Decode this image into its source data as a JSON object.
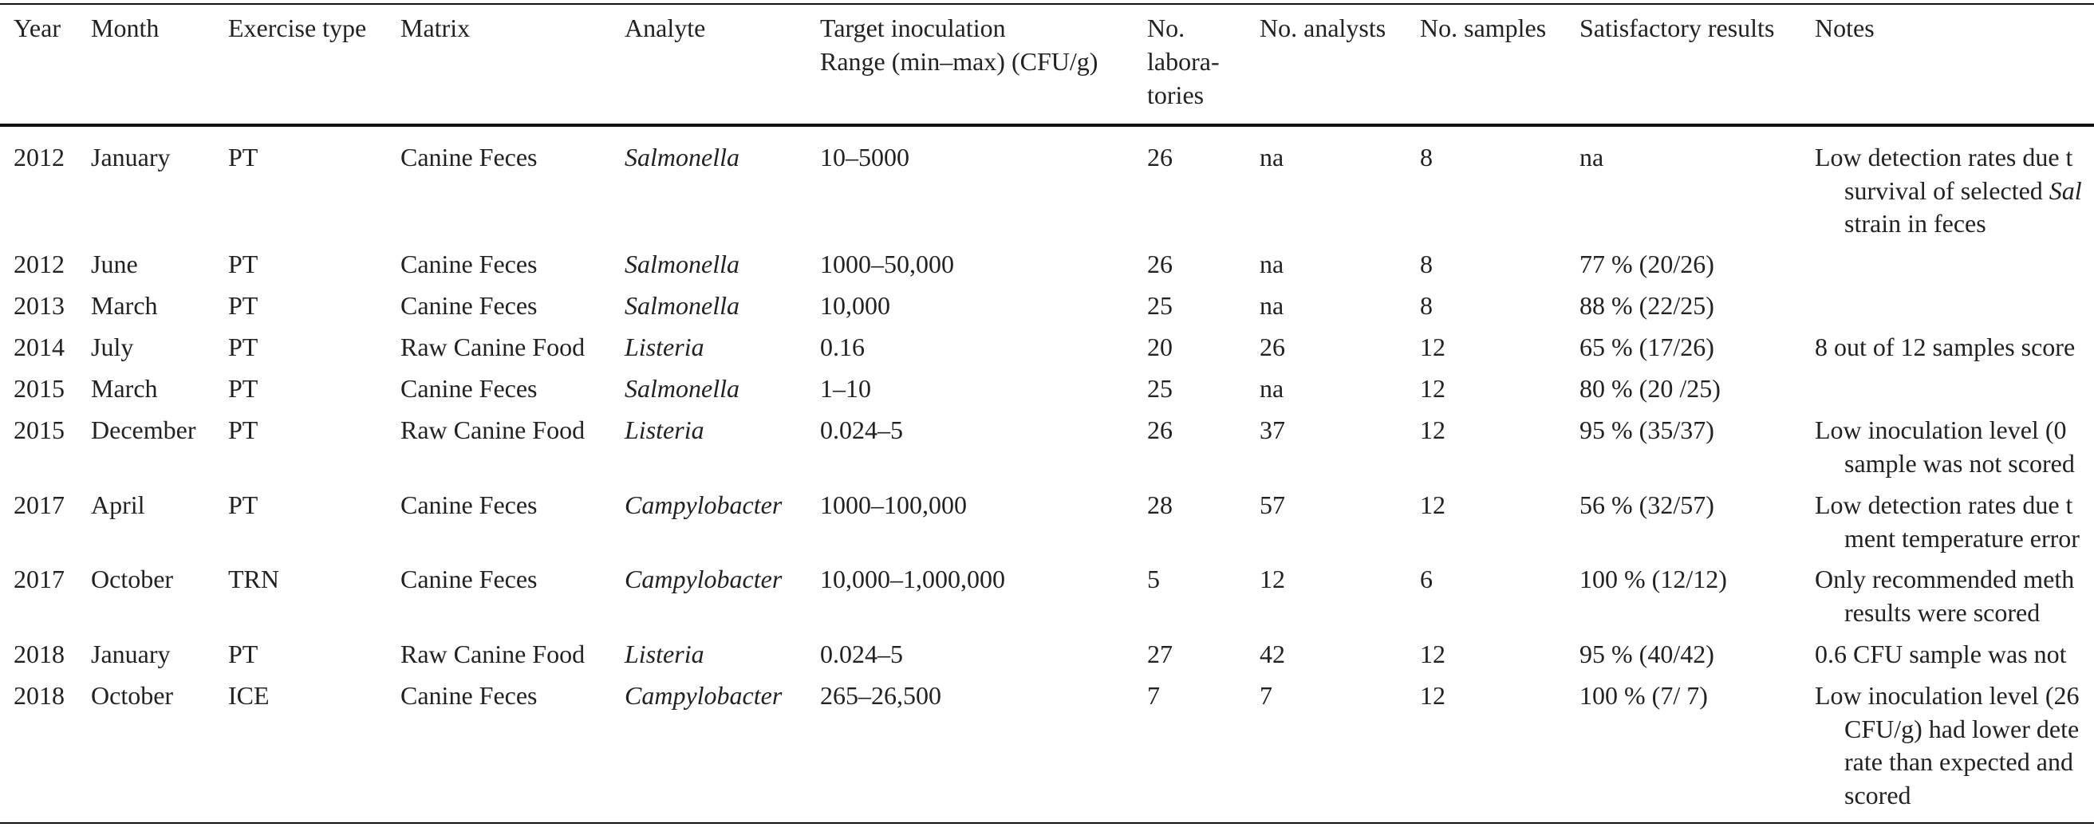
{
  "table": {
    "header": [
      [
        "Year"
      ],
      [
        "Month"
      ],
      [
        "Exercise type"
      ],
      [
        "Matrix"
      ],
      [
        "Analyte"
      ],
      [
        "Target inoculation",
        "Range (min–max) (CFU/g)"
      ],
      [
        "No.",
        "labora-",
        "tories"
      ],
      [
        "No. analysts"
      ],
      [
        "No. samples"
      ],
      [
        "Satisfactory results"
      ],
      [
        "Notes"
      ]
    ],
    "rows": [
      [
        "2012",
        "January",
        "PT",
        "Canine Feces",
        "Salmonella",
        "10–5000",
        "26",
        "na",
        "8",
        "na",
        [
          "Low detection rates due t",
          {
            "text": "survival of selected ",
            "italic": "Sal"
          },
          "strain in feces"
        ]
      ],
      [
        "2012",
        "June",
        "PT",
        "Canine Feces",
        "Salmonella",
        "1000–50,000",
        "26",
        "na",
        "8",
        "77 % (20/26)",
        []
      ],
      [
        "2013",
        "March",
        "PT",
        "Canine Feces",
        "Salmonella",
        "10,000",
        "25",
        "na",
        "8",
        "88 % (22/25)",
        []
      ],
      [
        "2014",
        "July",
        "PT",
        "Raw Canine Food",
        "Listeria",
        "0.16",
        "20",
        "26",
        "12",
        "65 % (17/26)",
        [
          "8 out of 12 samples score"
        ]
      ],
      [
        "2015",
        "March",
        "PT",
        "Canine Feces",
        "Salmonella",
        "1–10",
        "25",
        "na",
        "12",
        "80 % (20 /25)",
        []
      ],
      [
        "2015",
        "December",
        "PT",
        "Raw Canine Food",
        "Listeria",
        "0.024–5",
        "26",
        "37",
        "12",
        "95 % (35/37)",
        [
          "Low inoculation level (0",
          "sample was not scored"
        ]
      ],
      [
        "2017",
        "April",
        "PT",
        "Canine Feces",
        "Campylobacter",
        "1000–100,000",
        "28",
        "57",
        "12",
        "56 % (32/57)",
        [
          "Low detection rates due t",
          "ment temperature error"
        ]
      ],
      [
        "2017",
        "October",
        "TRN",
        "Canine Feces",
        "Campylobacter",
        "10,000–1,000,000",
        "5",
        "12",
        "6",
        "100 % (12/12)",
        [
          "Only recommended meth",
          "results were scored"
        ]
      ],
      [
        "2018",
        "January",
        "PT",
        "Raw Canine Food",
        "Listeria",
        "0.024–5",
        "27",
        "42",
        "12",
        "95 % (40/42)",
        [
          "0.6 CFU sample was not"
        ]
      ],
      [
        "2018",
        "October",
        "ICE",
        "Canine Feces",
        "Campylobacter",
        "265–26,500",
        "7",
        "7",
        "12",
        "100 % (7/ 7)",
        [
          "Low inoculation level (26",
          "CFU/g) had lower dete",
          "rate than expected and",
          "scored"
        ]
      ]
    ]
  }
}
